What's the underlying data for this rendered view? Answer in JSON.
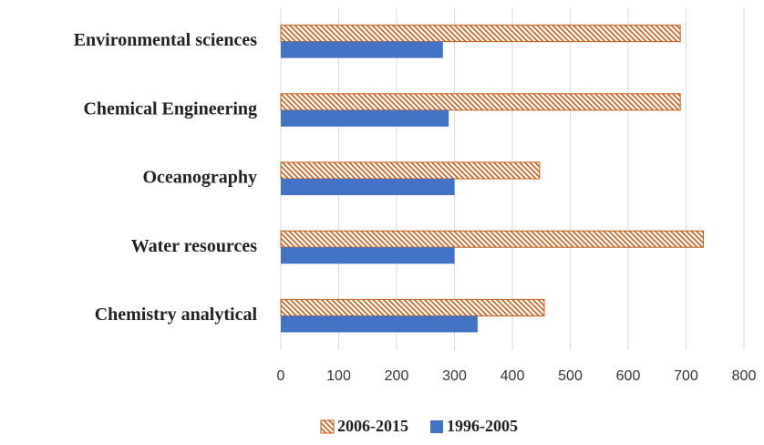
{
  "chart_data": {
    "type": "hbar",
    "categories": [
      "Environmental sciences",
      "Chemical Engineering",
      "Oceanography",
      "Water resources",
      "Chemistry analytical"
    ],
    "series": [
      {
        "name": "2006-2015",
        "color": "#c55a11",
        "pattern": "hatch",
        "values": [
          690,
          690,
          447,
          730,
          455
        ]
      },
      {
        "name": "1996-2005",
        "color": "#4472c4",
        "values": [
          280,
          290,
          300,
          300,
          340
        ]
      }
    ],
    "xlim": [
      0,
      800
    ],
    "xticks": [
      0,
      100,
      200,
      300,
      400,
      500,
      600,
      700,
      800
    ],
    "grid": true,
    "legend": "bottom"
  }
}
